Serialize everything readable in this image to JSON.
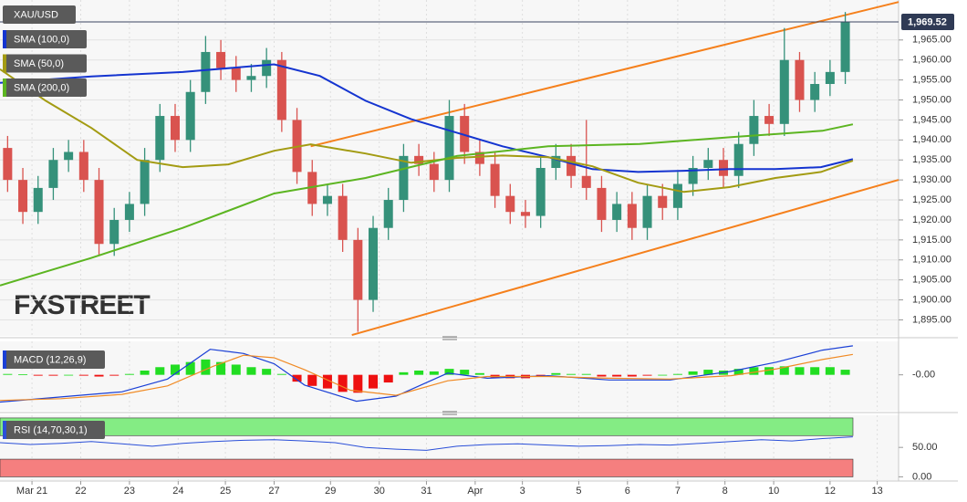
{
  "chart_data": [
    {
      "type": "candlestick",
      "name": "XAU/USD",
      "x": [
        0.5,
        1.5,
        2.5,
        3.5,
        4.5,
        5.5,
        6.5,
        7.5,
        8.5,
        9.5,
        10.5,
        11.5,
        12.5,
        13.5,
        14.5,
        15.5,
        16.5,
        17.5,
        18.5,
        19.5,
        20.5,
        21.5,
        22.5,
        23.5,
        24.5,
        25.5,
        26.5,
        27.5,
        28.5,
        29.5,
        30.5,
        31.5,
        32.5,
        33.5,
        34.5,
        35.5,
        36.5,
        37.5,
        38.5,
        39.5,
        40.5,
        41.5,
        42.5,
        43.5,
        44.5,
        45.5,
        46.5,
        47.5,
        48.5,
        49.5,
        50.5,
        51.5,
        52.5,
        53.5,
        54.5,
        55.5
      ],
      "open": [
        1938,
        1930,
        1922,
        1928,
        1935,
        1937,
        1930,
        1914,
        1920,
        1924,
        1935,
        1946,
        1940,
        1952,
        1962,
        1958,
        1955,
        1956,
        1960,
        1945,
        1932,
        1924,
        1926,
        1915,
        1900,
        1918,
        1925,
        1936,
        1934,
        1930,
        1946,
        1937,
        1934,
        1926,
        1922,
        1921,
        1933,
        1936,
        1931,
        1928,
        1920,
        1924,
        1918,
        1926,
        1923,
        1929,
        1933,
        1935,
        1931,
        1939,
        1946,
        1944,
        1960,
        1950,
        1954,
        1957
      ],
      "high": [
        1941,
        1933,
        1931,
        1938,
        1940,
        1940,
        1933,
        1923,
        1927,
        1938,
        1949,
        1949,
        1955,
        1966,
        1965,
        1961,
        1959,
        1963,
        1962,
        1948,
        1935,
        1929,
        1929,
        1918,
        1921,
        1928,
        1939,
        1939,
        1937,
        1950,
        1949,
        1940,
        1937,
        1929,
        1925,
        1936,
        1939,
        1939,
        1945,
        1931,
        1927,
        1927,
        1929,
        1929,
        1932,
        1936,
        1938,
        1938,
        1942,
        1950,
        1949,
        1968,
        1962,
        1957,
        1960,
        1972
      ],
      "low": [
        1927,
        1919,
        1919,
        1925,
        1932,
        1927,
        1911,
        1911,
        1917,
        1921,
        1932,
        1937,
        1937,
        1949,
        1955,
        1952,
        1952,
        1953,
        1942,
        1929,
        1921,
        1921,
        1912,
        1892,
        1897,
        1915,
        1922,
        1931,
        1927,
        1927,
        1934,
        1931,
        1923,
        1919,
        1918,
        1918,
        1930,
        1928,
        1925,
        1917,
        1917,
        1915,
        1915,
        1920,
        1920,
        1926,
        1930,
        1928,
        1928,
        1936,
        1941,
        1941,
        1947,
        1947,
        1951,
        1954
      ],
      "close": [
        1930,
        1922,
        1928,
        1935,
        1937,
        1930,
        1914,
        1920,
        1924,
        1935,
        1946,
        1940,
        1952,
        1962,
        1958,
        1955,
        1956,
        1960,
        1945,
        1932,
        1924,
        1926,
        1915,
        1900,
        1918,
        1925,
        1936,
        1934,
        1930,
        1946,
        1937,
        1934,
        1926,
        1922,
        1921,
        1933,
        1936,
        1931,
        1928,
        1920,
        1924,
        1918,
        1926,
        1923,
        1929,
        1933,
        1935,
        1931,
        1939,
        1946,
        1944,
        1960,
        1950,
        1954,
        1957,
        1969.52
      ],
      "up_color": "#35917a",
      "down_color": "#d9534f",
      "overlays": [
        {
          "name": "SMA (100,0)",
          "color": "#1434d0",
          "x": [
            0,
            6,
            12,
            18,
            21,
            24,
            27,
            30,
            33,
            36,
            38.9,
            41.9,
            44.9,
            47.9,
            50.9,
            53.9,
            56
          ],
          "values": [
            1954.3,
            1955.9,
            1957,
            1958.9,
            1956,
            1949.8,
            1945.2,
            1941.8,
            1938.4,
            1935.7,
            1932.7,
            1932,
            1932.3,
            1932.7,
            1932.7,
            1933.2,
            1935.2
          ]
        },
        {
          "name": "SMA (50,0)",
          "color": "#a39b12",
          "x": [
            0,
            3,
            6,
            9,
            12,
            15,
            18,
            20.4,
            24,
            27,
            30,
            33,
            36,
            38.9,
            41.9,
            44.9,
            47.9,
            50.9,
            53.9,
            56
          ],
          "values": [
            1957.7,
            1949.8,
            1943,
            1935,
            1933.2,
            1933.9,
            1937.3,
            1938.9,
            1936.6,
            1934.3,
            1935.5,
            1936.1,
            1935.7,
            1933.4,
            1929.3,
            1927,
            1928.2,
            1930.5,
            1932,
            1934.8
          ]
        },
        {
          "name": "SMA (200,0)",
          "color": "#5cb521",
          "x": [
            0,
            6,
            12,
            18,
            24,
            30,
            36,
            42,
            48,
            54,
            56
          ],
          "values": [
            1903.6,
            1910.5,
            1918,
            1926.6,
            1930.5,
            1936,
            1938.4,
            1939,
            1940.7,
            1942.3,
            1943.9
          ]
        }
      ],
      "trendlines": [
        {
          "color": "#f5801c",
          "x": [
            20.4,
            59
          ],
          "values": [
            1938.4,
            1974.5
          ]
        },
        {
          "color": "#f5801c",
          "x": [
            23.1,
            59
          ],
          "values": [
            1891.2,
            1930
          ]
        }
      ],
      "last_price": {
        "value": 1969.52,
        "label": "1,969.52"
      },
      "watermark": "FXSTREET",
      "xlim": [
        0,
        59
      ],
      "xticks": [
        {
          "value": 2.1,
          "label": "Mar 21"
        },
        {
          "value": 5.3,
          "label": "22"
        },
        {
          "value": 8.5,
          "label": "23"
        },
        {
          "value": 11.7,
          "label": "24"
        },
        {
          "value": 14.8,
          "label": "25"
        },
        {
          "value": 18,
          "label": "27"
        },
        {
          "value": 21.7,
          "label": "29"
        },
        {
          "value": 24.9,
          "label": "30"
        },
        {
          "value": 28,
          "label": "31"
        },
        {
          "value": 31.2,
          "label": "Apr"
        },
        {
          "value": 34.3,
          "label": "3"
        },
        {
          "value": 38,
          "label": "5"
        },
        {
          "value": 41.2,
          "label": "6"
        },
        {
          "value": 44.5,
          "label": "7"
        },
        {
          "value": 47.6,
          "label": "8"
        },
        {
          "value": 50.8,
          "label": "10"
        },
        {
          "value": 54.5,
          "label": "12"
        },
        {
          "value": 57.6,
          "label": "13"
        }
      ],
      "ylim": [
        1891,
        1975
      ],
      "yticks": [
        {
          "value": 1895,
          "label": "1,895.00"
        },
        {
          "value": 1900,
          "label": "1,900.00"
        },
        {
          "value": 1905,
          "label": "1,905.00"
        },
        {
          "value": 1910,
          "label": "1,910.00"
        },
        {
          "value": 1915,
          "label": "1,915.00"
        },
        {
          "value": 1920,
          "label": "1,920.00"
        },
        {
          "value": 1925,
          "label": "1,925.00"
        },
        {
          "value": 1930,
          "label": "1,930.00"
        },
        {
          "value": 1935,
          "label": "1,935.00"
        },
        {
          "value": 1940,
          "label": "1,940.00"
        },
        {
          "value": 1945,
          "label": "1,945.00"
        },
        {
          "value": 1950,
          "label": "1,950.00"
        },
        {
          "value": 1955,
          "label": "1,955.00"
        },
        {
          "value": 1960,
          "label": "1,960.00"
        },
        {
          "value": 1965,
          "label": "1,965.00"
        }
      ],
      "grid": true
    },
    {
      "type": "macd",
      "name": "MACD (12,26,9)",
      "x": [
        0.5,
        1.5,
        2.5,
        3.5,
        4.5,
        5.5,
        6.5,
        7.5,
        8.5,
        9.5,
        10.5,
        11.5,
        12.5,
        13.5,
        14.5,
        15.5,
        16.5,
        17.5,
        18.5,
        19.5,
        20.5,
        21.5,
        22.5,
        23.5,
        24.5,
        25.5,
        26.5,
        27.5,
        28.5,
        29.5,
        30.5,
        31.5,
        32.5,
        33.5,
        34.5,
        35.5,
        36.5,
        37.5,
        38.5,
        39.5,
        40.5,
        41.5,
        42.5,
        43.5,
        44.5,
        45.5,
        46.5,
        47.5,
        48.5,
        49.5,
        50.5,
        51.5,
        52.5,
        53.5,
        54.5,
        55.5
      ],
      "histogram": [
        0.1,
        0.05,
        -0.1,
        -0.1,
        0.0,
        -0.1,
        -0.2,
        -0.1,
        0.1,
        0.5,
        0.9,
        1.2,
        1.5,
        1.8,
        1.5,
        1.2,
        0.9,
        0.7,
        0.1,
        -0.8,
        -1.3,
        -1.6,
        -2.0,
        -2.1,
        -1.6,
        -0.9,
        0.3,
        0.5,
        0.4,
        0.7,
        0.6,
        0.2,
        -0.3,
        -0.4,
        -0.4,
        -0.1,
        0.2,
        0.1,
        0.1,
        -0.2,
        -0.2,
        -0.2,
        -0.1,
        0.0,
        0.1,
        0.4,
        0.6,
        0.5,
        0.7,
        0.9,
        0.9,
        1.0,
        0.9,
        0.9,
        0.9,
        0.6
      ],
      "positive_color": "#22dd22",
      "negative_color": "#ee1111",
      "lines": [
        {
          "color": "#1a3fd6",
          "x": [
            0,
            4,
            8,
            11,
            13.8,
            16,
            18,
            20,
            23.4,
            26,
            29.4,
            32,
            36,
            40,
            44,
            48,
            51,
            54,
            56
          ],
          "values": [
            -3.2,
            -2.6,
            -2.0,
            -0.5,
            3.0,
            2.5,
            1.3,
            -1.2,
            -3.1,
            -2.5,
            0.2,
            -0.4,
            -0.1,
            -0.6,
            -0.6,
            0.4,
            1.5,
            2.9,
            3.4
          ]
        },
        {
          "color": "#f08a24",
          "x": [
            0,
            4,
            8,
            11,
            14,
            16,
            18,
            20,
            23,
            26,
            29.4,
            32,
            36,
            40,
            44,
            48,
            51,
            54,
            56
          ],
          "values": [
            -3,
            -2.8,
            -2.3,
            -1.3,
            1.0,
            2.3,
            2,
            0.6,
            -1.8,
            -2.4,
            -0.7,
            -0.2,
            -0.2,
            -0.4,
            -0.5,
            -0.1,
            0.7,
            1.8,
            2.4
          ]
        }
      ],
      "ylim": [
        -4,
        3.5
      ],
      "yticks": [
        {
          "value": 0,
          "label": "-0.00"
        }
      ]
    },
    {
      "type": "line",
      "name": "RSI (14,70,30,1)",
      "x": [
        0,
        2,
        4,
        6,
        8,
        10,
        12,
        14,
        16,
        18,
        20,
        22,
        24,
        26,
        28,
        30,
        32,
        34,
        36,
        38,
        40,
        42,
        44,
        46,
        48,
        50,
        52,
        54,
        56
      ],
      "values": [
        58,
        55,
        57,
        60,
        56,
        52,
        57,
        60,
        62,
        63,
        61,
        58,
        50,
        47,
        45,
        52,
        55,
        56,
        54,
        52,
        53,
        55,
        54,
        57,
        60,
        63,
        61,
        65,
        68
      ],
      "color": "#2a4fd8",
      "bands": [
        {
          "from": 70,
          "to": 100,
          "color": "#84ec84"
        },
        {
          "from": 0,
          "to": 30,
          "color": "#f57f7f"
        }
      ],
      "ylim": [
        -4,
        103
      ],
      "yticks": [
        {
          "value": 50,
          "label": "50.00"
        },
        {
          "value": 0,
          "label": "0.00"
        }
      ]
    }
  ]
}
